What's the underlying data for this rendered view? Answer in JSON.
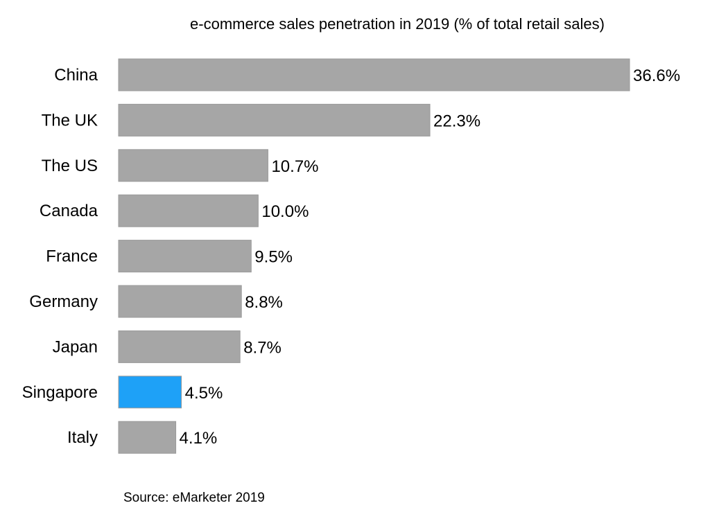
{
  "chart_data": {
    "type": "bar",
    "orientation": "horizontal",
    "title": "e-commerce sales penetration in 2019 (% of total retail sales)",
    "categories": [
      "China",
      "The UK",
      "The US",
      "Canada",
      "France",
      "Germany",
      "Japan",
      "Singapore",
      "Italy"
    ],
    "values": [
      36.6,
      22.3,
      10.7,
      10.0,
      9.5,
      8.8,
      8.7,
      4.5,
      4.1
    ],
    "data_labels": [
      "36.6%",
      "22.3%",
      "10.7%",
      "10.0%",
      "9.5%",
      "8.8%",
      "8.7%",
      "4.5%",
      "4.1%"
    ],
    "highlight": "Singapore",
    "colors": {
      "default": "#a6a6a6",
      "highlight": "#1ea1f7",
      "border": "#9a9a9a"
    },
    "xlim": [
      0,
      40
    ],
    "grid": false,
    "legend": "none",
    "source": "Source: eMarketer 2019"
  }
}
